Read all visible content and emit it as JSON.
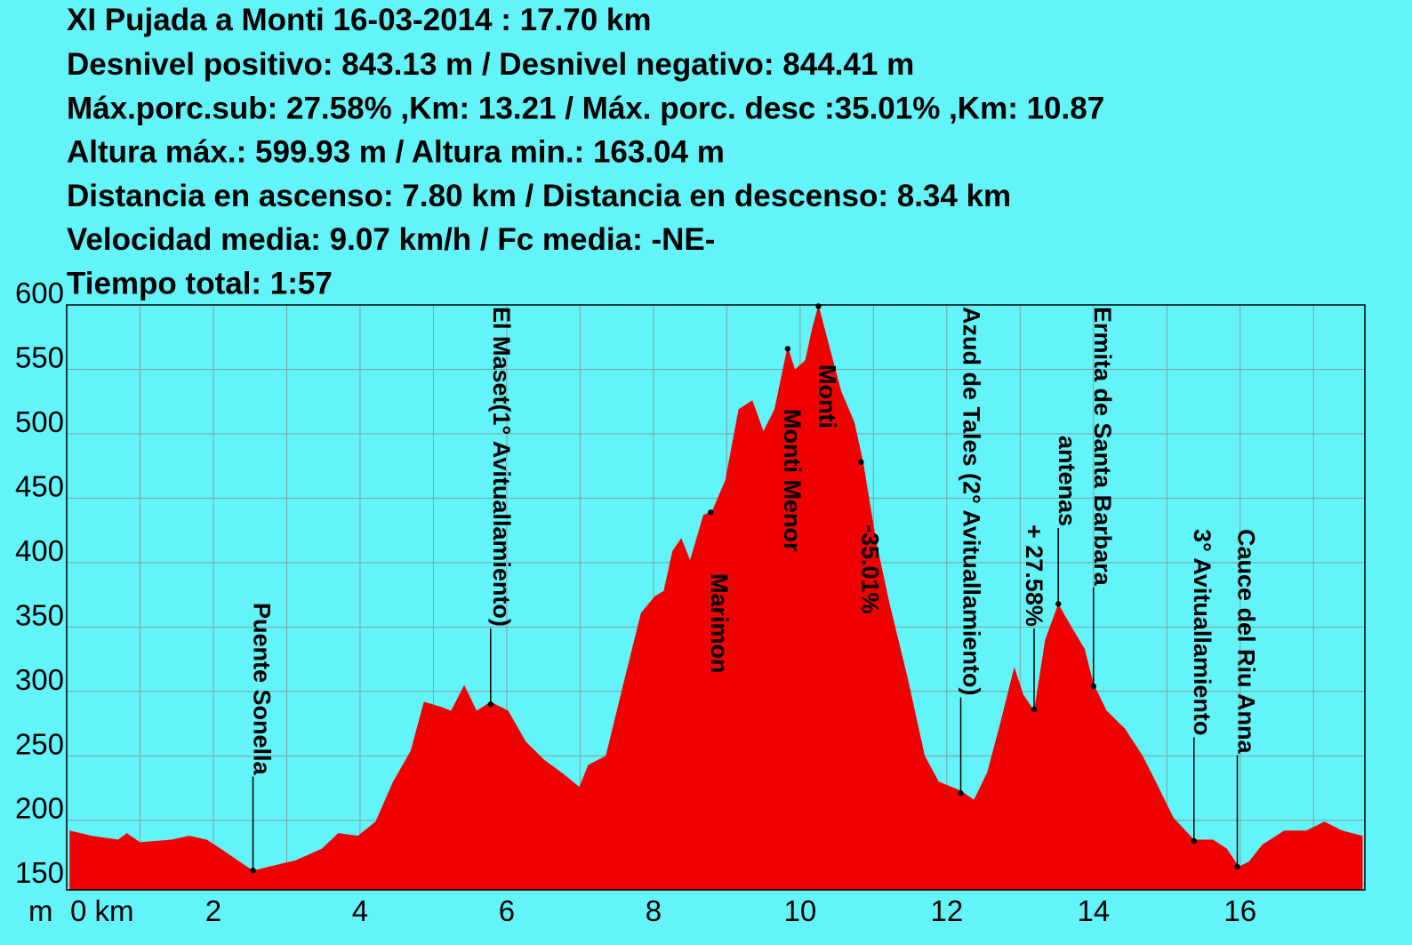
{
  "chart_data": {
    "type": "area",
    "title": "XI Pujada a Monti 16-03-2014 : 17.70 km",
    "stats": [
      "Desnivel positivo: 843.13 m / Desnivel negativo: 844.41 m",
      "Máx.porc.sub: 27.58% ,Km: 13.21 / Máx. porc. desc :35.01% ,Km: 10.87",
      "Altura máx.: 599.93 m / Altura min.: 163.04 m",
      "Distancia en ascenso: 7.80 km / Distancia en descenso: 8.34 km",
      "Velocidad media: 9.07 km/h / Fc media: -NE-",
      "Tiempo total: 1:57"
    ],
    "y_label": "m",
    "color": "#f00000",
    "x": [
      0.04,
      0.34,
      0.7,
      0.82,
      1.0,
      1.43,
      1.67,
      1.91,
      2.1,
      2.33,
      2.54,
      2.76,
      3.12,
      3.48,
      3.7,
      3.97,
      4.21,
      4.45,
      4.69,
      4.87,
      5.11,
      5.24,
      5.42,
      5.59,
      5.78,
      6.02,
      6.26,
      6.51,
      6.75,
      6.99,
      7.11,
      7.35,
      7.59,
      7.83,
      8.02,
      8.14,
      8.26,
      8.38,
      8.5,
      8.68,
      8.8,
      8.98,
      9.16,
      9.35,
      9.5,
      9.65,
      9.83,
      9.93,
      10.07,
      10.16,
      10.25,
      10.37,
      10.56,
      10.74,
      10.86,
      11.04,
      11.22,
      11.46,
      11.7,
      11.89,
      12.19,
      12.37,
      12.55,
      12.74,
      12.92,
      13.04,
      13.19,
      13.34,
      13.52,
      13.7,
      13.88,
      14.0,
      14.18,
      14.43,
      14.67,
      14.85,
      15.09,
      15.37,
      15.63,
      15.82,
      15.98,
      16.12,
      16.3,
      16.6,
      16.9,
      17.15,
      17.39,
      17.67
    ],
    "values": [
      192,
      188,
      185,
      190,
      183,
      185,
      188,
      185,
      178,
      169,
      161,
      164,
      169,
      178,
      190,
      188,
      199,
      230,
      254,
      292,
      288,
      285,
      305,
      285,
      292,
      285,
      261,
      247,
      237,
      226,
      243,
      250,
      306,
      361,
      374,
      378,
      409,
      419,
      402,
      437,
      440,
      464,
      519,
      526,
      502,
      519,
      568,
      550,
      557,
      581,
      600,
      574,
      533,
      509,
      478,
      416,
      368,
      312,
      250,
      230,
      223,
      216,
      237,
      278,
      319,
      298,
      285,
      340,
      368,
      350,
      333,
      306,
      285,
      271,
      250,
      230,
      202,
      185,
      185,
      178,
      164,
      168,
      181,
      192,
      192,
      199,
      192,
      188
    ],
    "annotations": [
      {
        "label": "Puente Sonella",
        "x": 2.54,
        "y": 161
      },
      {
        "label": "El Maset(1° Avituallamiento)",
        "x": 5.78,
        "y": 290
      },
      {
        "label": "Marimon",
        "x": 8.78,
        "y": 439
      },
      {
        "label": "Monti Menor",
        "x": 9.83,
        "y": 566
      },
      {
        "label": "Monti",
        "x": 10.25,
        "y": 599
      },
      {
        "label": "-35.01%",
        "x": 10.83,
        "y": 478
      },
      {
        "label": "Azud de Tales (2° Avituallamiento)",
        "x": 12.19,
        "y": 221
      },
      {
        "label": "+ 27.58%",
        "x": 13.19,
        "y": 286
      },
      {
        "label": "antenas",
        "x": 13.52,
        "y": 368
      },
      {
        "label": "Ermita de Santa Barbara",
        "x": 14.0,
        "y": 304
      },
      {
        "label": "3° Avituallamiento",
        "x": 15.37,
        "y": 184
      },
      {
        "label": "Cauce del Riu Anna",
        "x": 15.96,
        "y": 164
      }
    ],
    "xlim": [
      0,
      17.7
    ],
    "ylim": [
      146,
      600
    ],
    "xticks": [
      {
        "value": 0,
        "label": "0 km"
      },
      2,
      4,
      6,
      8,
      10,
      12,
      14,
      16
    ],
    "xminor_ticks": [
      1,
      3,
      5,
      7,
      9,
      11,
      13,
      15,
      17
    ],
    "yticks": [
      150,
      200,
      250,
      300,
      350,
      400,
      450,
      500,
      550,
      600
    ],
    "grid": true
  }
}
